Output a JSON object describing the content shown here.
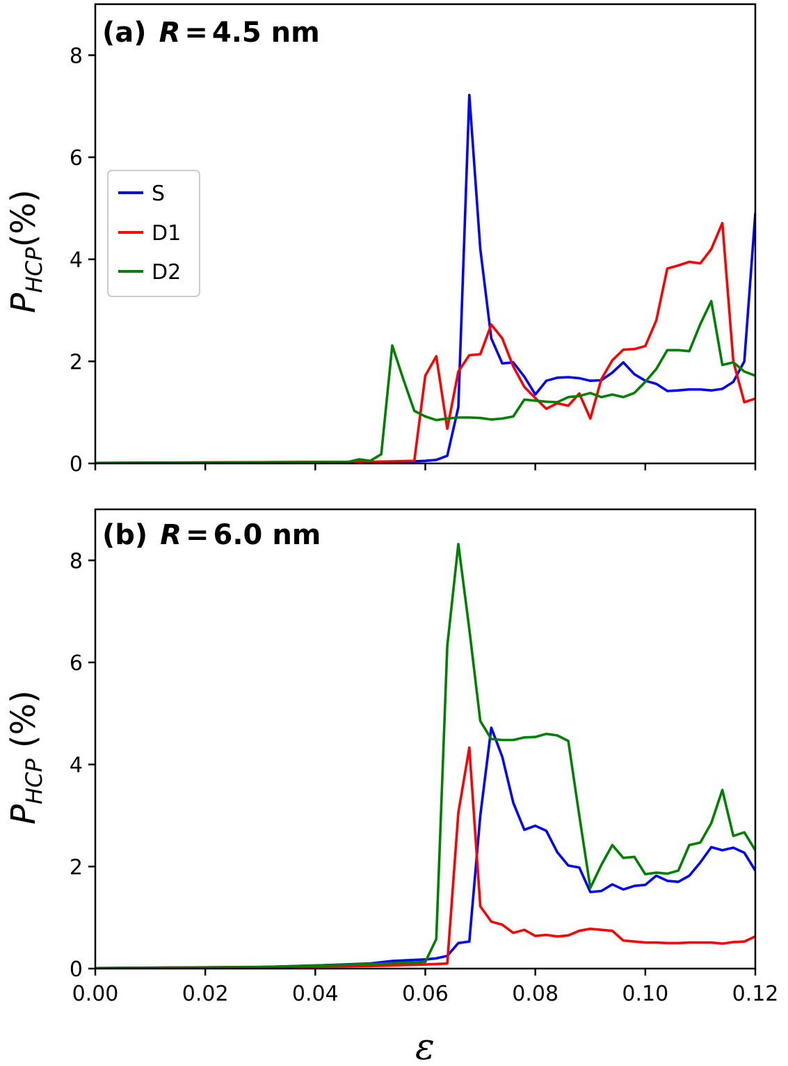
{
  "chart_data": [
    {
      "type": "line",
      "panel_label": "(a)",
      "title_var": "R",
      "title_eq": "=",
      "title_value": "4.5 nm",
      "ylabel": {
        "main": "P",
        "sub": "HCP",
        "unit": "(%)"
      },
      "xlabel": "",
      "xlim": [
        0,
        0.12
      ],
      "ylim": [
        0,
        9
      ],
      "yticks": [
        0,
        2,
        4,
        6,
        8
      ],
      "ytick_labels": [
        "0",
        "2",
        "4",
        "6",
        "8"
      ],
      "legend": {
        "placement": "center-left",
        "entries": [
          "S",
          "D1",
          "D2"
        ]
      },
      "series": [
        {
          "name": "S",
          "color": "#0000ff",
          "x": [
            0.0,
            0.04,
            0.05,
            0.058,
            0.06,
            0.062,
            0.064,
            0.066,
            0.068,
            0.07,
            0.072,
            0.074,
            0.076,
            0.078,
            0.08,
            0.082,
            0.084,
            0.086,
            0.088,
            0.09,
            0.092,
            0.094,
            0.096,
            0.098,
            0.1,
            0.102,
            0.104,
            0.106,
            0.108,
            0.11,
            0.112,
            0.114,
            0.116,
            0.118,
            0.12
          ],
          "y": [
            0.01,
            0.02,
            0.03,
            0.04,
            0.05,
            0.07,
            0.15,
            1.1,
            7.22,
            4.2,
            2.45,
            1.96,
            1.98,
            1.7,
            1.35,
            1.62,
            1.68,
            1.69,
            1.67,
            1.62,
            1.63,
            1.78,
            1.98,
            1.75,
            1.62,
            1.56,
            1.42,
            1.43,
            1.45,
            1.45,
            1.43,
            1.46,
            1.6,
            2.0,
            4.9
          ]
        },
        {
          "name": "D1",
          "color": "#ff0000",
          "x": [
            0.0,
            0.04,
            0.05,
            0.058,
            0.06,
            0.062,
            0.064,
            0.066,
            0.068,
            0.07,
            0.072,
            0.074,
            0.076,
            0.078,
            0.08,
            0.082,
            0.084,
            0.086,
            0.088,
            0.09,
            0.092,
            0.094,
            0.096,
            0.098,
            0.1,
            0.102,
            0.104,
            0.106,
            0.108,
            0.11,
            0.112,
            0.114,
            0.116,
            0.118,
            0.12
          ],
          "y": [
            0.01,
            0.03,
            0.03,
            0.05,
            1.72,
            2.1,
            0.68,
            1.8,
            2.12,
            2.14,
            2.72,
            2.45,
            1.9,
            1.5,
            1.28,
            1.07,
            1.18,
            1.13,
            1.37,
            0.88,
            1.65,
            2.02,
            2.23,
            2.24,
            2.3,
            2.8,
            3.82,
            3.88,
            3.95,
            3.92,
            4.2,
            4.71,
            2.0,
            1.2,
            1.27
          ]
        },
        {
          "name": "D2",
          "color": "#008000",
          "x": [
            0.0,
            0.046,
            0.048,
            0.05,
            0.052,
            0.054,
            0.056,
            0.058,
            0.06,
            0.062,
            0.064,
            0.066,
            0.068,
            0.07,
            0.072,
            0.074,
            0.076,
            0.078,
            0.08,
            0.082,
            0.084,
            0.086,
            0.088,
            0.09,
            0.092,
            0.094,
            0.096,
            0.098,
            0.1,
            0.102,
            0.104,
            0.106,
            0.108,
            0.11,
            0.112,
            0.114,
            0.116,
            0.118,
            0.12
          ],
          "y": [
            0.01,
            0.03,
            0.08,
            0.05,
            0.18,
            2.31,
            1.65,
            1.03,
            0.92,
            0.85,
            0.88,
            0.9,
            0.9,
            0.89,
            0.86,
            0.88,
            0.92,
            1.25,
            1.23,
            1.21,
            1.2,
            1.3,
            1.32,
            1.38,
            1.3,
            1.35,
            1.3,
            1.38,
            1.6,
            1.85,
            2.22,
            2.22,
            2.2,
            2.73,
            3.18,
            1.93,
            1.98,
            1.8,
            1.72
          ]
        }
      ]
    },
    {
      "type": "line",
      "panel_label": "(b)",
      "title_var": "R",
      "title_eq": "=",
      "title_value": "6.0 nm",
      "ylabel": {
        "main": "P",
        "sub": "HCP",
        "unit": " (%)"
      },
      "xlabel": "ε",
      "xlim": [
        0,
        0.12
      ],
      "ylim": [
        0,
        9
      ],
      "yticks": [
        0,
        2,
        4,
        6,
        8
      ],
      "ytick_labels": [
        "0",
        "2",
        "4",
        "6",
        "8"
      ],
      "xticks": [
        0,
        0.02,
        0.04,
        0.06,
        0.08,
        0.1,
        0.12
      ],
      "xtick_labels": [
        "0.00",
        "0.02",
        "0.04",
        "0.06",
        "0.08",
        "0.10",
        "0.12"
      ],
      "series": [
        {
          "name": "S",
          "color": "#0000ff",
          "x": [
            0.0,
            0.03,
            0.04,
            0.05,
            0.054,
            0.058,
            0.06,
            0.062,
            0.064,
            0.066,
            0.068,
            0.07,
            0.072,
            0.074,
            0.076,
            0.078,
            0.08,
            0.082,
            0.084,
            0.086,
            0.088,
            0.09,
            0.092,
            0.094,
            0.096,
            0.098,
            0.1,
            0.102,
            0.104,
            0.106,
            0.108,
            0.11,
            0.112,
            0.114,
            0.116,
            0.118,
            0.12
          ],
          "y": [
            0.01,
            0.03,
            0.06,
            0.1,
            0.15,
            0.17,
            0.18,
            0.2,
            0.25,
            0.5,
            0.53,
            3.0,
            4.72,
            4.15,
            3.25,
            2.72,
            2.8,
            2.7,
            2.28,
            2.02,
            1.98,
            1.5,
            1.52,
            1.65,
            1.55,
            1.62,
            1.64,
            1.82,
            1.72,
            1.7,
            1.82,
            2.08,
            2.38,
            2.32,
            2.37,
            2.27,
            1.92
          ]
        },
        {
          "name": "D1",
          "color": "#ff0000",
          "x": [
            0.0,
            0.04,
            0.05,
            0.06,
            0.064,
            0.066,
            0.068,
            0.07,
            0.072,
            0.074,
            0.076,
            0.078,
            0.08,
            0.082,
            0.084,
            0.086,
            0.088,
            0.09,
            0.092,
            0.094,
            0.096,
            0.098,
            0.1,
            0.102,
            0.104,
            0.106,
            0.108,
            0.11,
            0.112,
            0.114,
            0.116,
            0.118,
            0.12
          ],
          "y": [
            0.01,
            0.04,
            0.05,
            0.08,
            0.1,
            3.05,
            4.33,
            1.22,
            0.92,
            0.86,
            0.7,
            0.76,
            0.64,
            0.66,
            0.63,
            0.65,
            0.74,
            0.78,
            0.76,
            0.74,
            0.55,
            0.53,
            0.51,
            0.51,
            0.5,
            0.5,
            0.51,
            0.51,
            0.51,
            0.49,
            0.52,
            0.53,
            0.63
          ]
        },
        {
          "name": "D2",
          "color": "#008000",
          "x": [
            0.0,
            0.03,
            0.04,
            0.05,
            0.06,
            0.062,
            0.064,
            0.066,
            0.068,
            0.07,
            0.072,
            0.074,
            0.076,
            0.078,
            0.08,
            0.082,
            0.084,
            0.086,
            0.088,
            0.09,
            0.092,
            0.094,
            0.096,
            0.098,
            0.1,
            0.102,
            0.104,
            0.106,
            0.108,
            0.11,
            0.112,
            0.114,
            0.116,
            0.118,
            0.12
          ],
          "y": [
            0.01,
            0.03,
            0.06,
            0.09,
            0.13,
            0.58,
            6.32,
            8.32,
            6.65,
            4.85,
            4.5,
            4.48,
            4.48,
            4.53,
            4.54,
            4.6,
            4.57,
            4.46,
            3.0,
            1.58,
            2.03,
            2.42,
            2.17,
            2.19,
            1.85,
            1.88,
            1.86,
            1.92,
            2.42,
            2.47,
            2.85,
            3.5,
            2.6,
            2.67,
            2.32
          ]
        }
      ]
    }
  ]
}
